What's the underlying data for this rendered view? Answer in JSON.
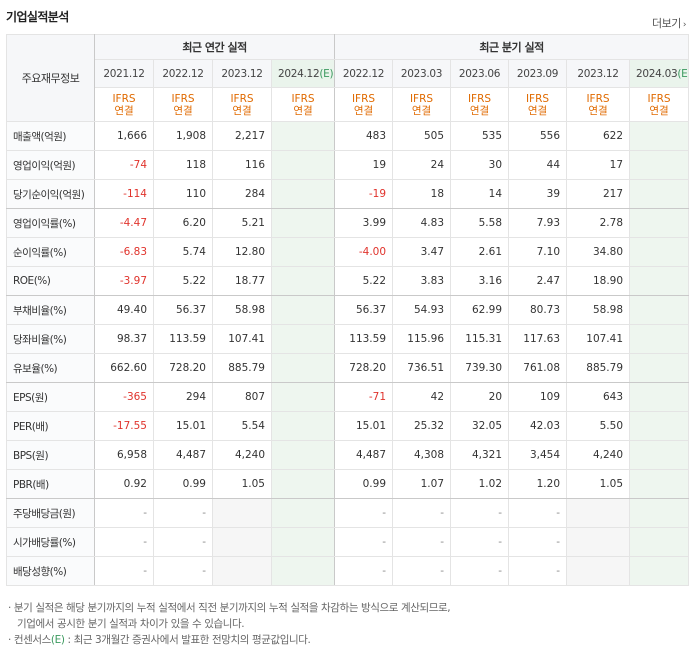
{
  "title": "기업실적분석",
  "more_label": "더보기",
  "header": {
    "row_head": "주요재무정보",
    "annual_group": "최근 연간 실적",
    "quarter_group": "최근 분기 실적",
    "annual_periods": [
      "2021.12",
      "2022.12",
      "2023.12",
      "2024.12"
    ],
    "annual_estimate_mark": "(E)",
    "quarter_periods": [
      "2022.12",
      "2023.03",
      "2023.06",
      "2023.09",
      "2023.12",
      "2024.03"
    ],
    "quarter_estimate_mark": "(E)",
    "basis_line1": "IFRS",
    "basis_line2": "연결"
  },
  "rows": [
    {
      "label": "매출액(억원)",
      "annual": [
        "1,666",
        "1,908",
        "2,217",
        ""
      ],
      "quarter": [
        "483",
        "505",
        "535",
        "556",
        "622",
        ""
      ]
    },
    {
      "label": "영업이익(억원)",
      "annual": [
        "-74",
        "118",
        "116",
        ""
      ],
      "quarter": [
        "19",
        "24",
        "30",
        "44",
        "17",
        ""
      ]
    },
    {
      "label": "당기순이익(억원)",
      "annual": [
        "-114",
        "110",
        "284",
        ""
      ],
      "quarter": [
        "-19",
        "18",
        "14",
        "39",
        "217",
        ""
      ]
    },
    {
      "label": "영업이익률(%)",
      "annual": [
        "-4.47",
        "6.20",
        "5.21",
        ""
      ],
      "quarter": [
        "3.99",
        "4.83",
        "5.58",
        "7.93",
        "2.78",
        ""
      ]
    },
    {
      "label": "순이익률(%)",
      "annual": [
        "-6.83",
        "5.74",
        "12.80",
        ""
      ],
      "quarter": [
        "-4.00",
        "3.47",
        "2.61",
        "7.10",
        "34.80",
        ""
      ]
    },
    {
      "label": "ROE(%)",
      "annual": [
        "-3.97",
        "5.22",
        "18.77",
        ""
      ],
      "quarter": [
        "5.22",
        "3.83",
        "3.16",
        "2.47",
        "18.90",
        ""
      ]
    },
    {
      "label": "부채비율(%)",
      "annual": [
        "49.40",
        "56.37",
        "58.98",
        ""
      ],
      "quarter": [
        "56.37",
        "54.93",
        "62.99",
        "80.73",
        "58.98",
        ""
      ]
    },
    {
      "label": "당좌비율(%)",
      "annual": [
        "98.37",
        "113.59",
        "107.41",
        ""
      ],
      "quarter": [
        "113.59",
        "115.96",
        "115.31",
        "117.63",
        "107.41",
        ""
      ]
    },
    {
      "label": "유보율(%)",
      "annual": [
        "662.60",
        "728.20",
        "885.79",
        ""
      ],
      "quarter": [
        "728.20",
        "736.51",
        "739.30",
        "761.08",
        "885.79",
        ""
      ]
    },
    {
      "label": "EPS(원)",
      "annual": [
        "-365",
        "294",
        "807",
        ""
      ],
      "quarter": [
        "-71",
        "42",
        "20",
        "109",
        "643",
        ""
      ]
    },
    {
      "label": "PER(배)",
      "annual": [
        "-17.55",
        "15.01",
        "5.54",
        ""
      ],
      "quarter": [
        "15.01",
        "25.32",
        "32.05",
        "42.03",
        "5.50",
        ""
      ]
    },
    {
      "label": "BPS(원)",
      "annual": [
        "6,958",
        "4,487",
        "4,240",
        ""
      ],
      "quarter": [
        "4,487",
        "4,308",
        "4,321",
        "3,454",
        "4,240",
        ""
      ]
    },
    {
      "label": "PBR(배)",
      "annual": [
        "0.92",
        "0.99",
        "1.05",
        ""
      ],
      "quarter": [
        "0.99",
        "1.07",
        "1.02",
        "1.20",
        "1.05",
        ""
      ]
    },
    {
      "label": "주당배당금(원)",
      "annual": [
        "-",
        "-",
        "",
        ""
      ],
      "quarter": [
        "-",
        "-",
        "-",
        "-",
        "",
        ""
      ]
    },
    {
      "label": "시가배당률(%)",
      "annual": [
        "-",
        "-",
        "",
        ""
      ],
      "quarter": [
        "-",
        "-",
        "-",
        "-",
        "",
        ""
      ]
    },
    {
      "label": "배당성향(%)",
      "annual": [
        "-",
        "-",
        "",
        ""
      ],
      "quarter": [
        "-",
        "-",
        "-",
        "-",
        "",
        ""
      ]
    }
  ],
  "notes": {
    "note1_a": "· 분기 실적은 해당 분기까지의 누적 실적에서 직전 분기까지의 누적 실적을 차감하는 방식으로 계산되므로,",
    "note1_b": "기업에서 공시한 분기 실적과 차이가 있을 수 있습니다.",
    "note2_prefix": "· 컨센서스",
    "note2_mark": "(E)",
    "note2_suffix": " : 최근 3개월간 증권사에서 발표한 전망치의 평균값입니다."
  },
  "colors": {
    "negative": "#e0332c",
    "ifrs_basis": "#e06a00",
    "estimate_mark": "#3c9a5f",
    "estimate_bg": "#eef6ef"
  }
}
